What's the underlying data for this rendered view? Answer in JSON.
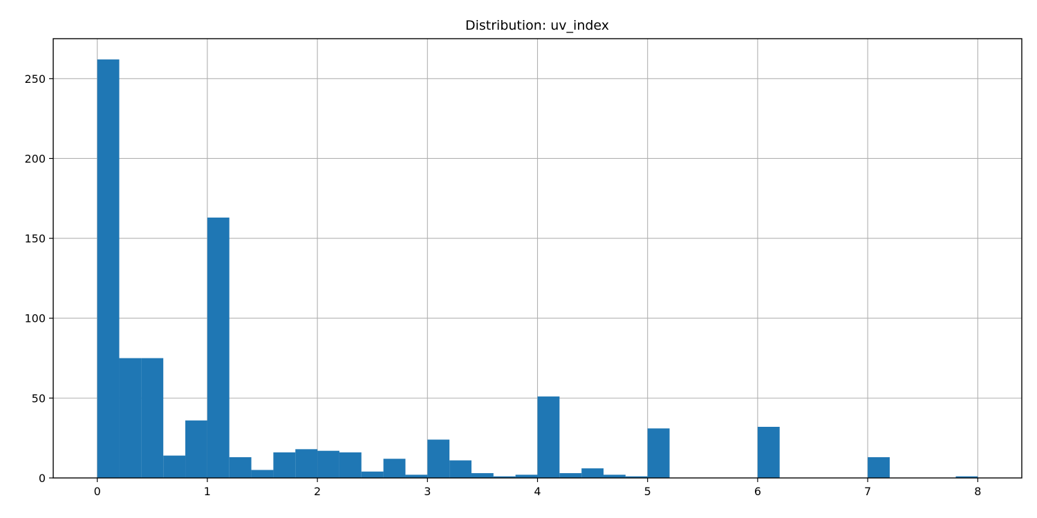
{
  "chart_data": {
    "type": "bar",
    "title": "Distribution: uv_index",
    "xlabel": "",
    "ylabel": "",
    "bin_width": 0.2,
    "bin_starts": [
      0.0,
      0.2,
      0.4,
      0.6,
      0.8,
      1.0,
      1.2,
      1.4,
      1.6,
      1.8,
      2.0,
      2.2,
      2.4,
      2.6,
      2.8,
      3.0,
      3.2,
      3.4,
      3.6,
      3.8,
      4.0,
      4.2,
      4.4,
      4.6,
      4.8,
      5.0,
      5.2,
      5.4,
      5.6,
      5.8,
      6.0,
      6.2,
      6.4,
      6.6,
      6.8,
      7.0,
      7.2,
      7.4,
      7.6,
      7.8
    ],
    "values": [
      262,
      75,
      75,
      14,
      36,
      163,
      13,
      5,
      16,
      18,
      17,
      16,
      4,
      12,
      2,
      24,
      11,
      3,
      1,
      2,
      51,
      3,
      6,
      2,
      1,
      31,
      0,
      0,
      0,
      0,
      32,
      0,
      0,
      0,
      0,
      13,
      0,
      0,
      0,
      1
    ],
    "xlim": [
      -0.4,
      8.4
    ],
    "ylim": [
      0,
      275
    ],
    "xticks": [
      0,
      1,
      2,
      3,
      4,
      5,
      6,
      7,
      8
    ],
    "yticks": [
      0,
      50,
      100,
      150,
      200,
      250
    ],
    "grid": true,
    "bar_color": "#1f77b4",
    "grid_color": "#b0b0b0"
  }
}
